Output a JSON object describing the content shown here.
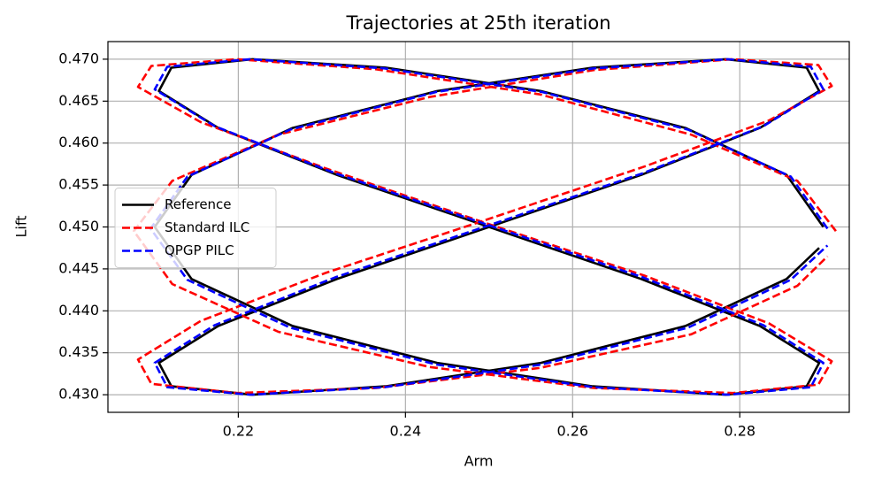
{
  "chart_data": {
    "type": "line",
    "title": "Trajectories at 25th iteration",
    "xlabel": "Arm",
    "ylabel": "Lift",
    "xlim": [
      0.2044,
      0.2931
    ],
    "ylim": [
      0.4279,
      0.4721
    ],
    "xticks": [
      0.22,
      0.24,
      0.26,
      0.28
    ],
    "yticks": [
      {
        "value": 0.43,
        "label": "0.430"
      },
      0.435,
      {
        "value": 0.44,
        "label": "0.440"
      },
      0.445,
      {
        "value": 0.45,
        "label": "0.450"
      },
      0.455,
      {
        "value": 0.46,
        "label": "0.460"
      },
      0.465,
      {
        "value": 0.47,
        "label": "0.470"
      }
    ],
    "grid": true,
    "legend": "center left",
    "series": [
      {
        "name": "Reference",
        "color": "#000000",
        "dashed": false,
        "x": [
          0.29,
          0.2856,
          0.2735,
          0.2562,
          0.2376,
          0.2217,
          0.212,
          0.2105,
          0.2176,
          0.2318,
          0.25,
          0.2682,
          0.2824,
          0.2895,
          0.288,
          0.2783,
          0.2624,
          0.2438,
          0.2265,
          0.2144,
          0.21,
          0.2144,
          0.2265,
          0.2438,
          0.2624,
          0.2783,
          0.288,
          0.2895,
          0.2824,
          0.2682,
          0.25,
          0.2318,
          0.2176,
          0.2105,
          0.212,
          0.2217,
          0.2376,
          0.2562,
          0.2735,
          0.2856,
          0.2895
        ],
        "values": [
          0.45,
          0.4562,
          0.4618,
          0.4662,
          0.469,
          0.47,
          0.469,
          0.4662,
          0.4618,
          0.4562,
          0.45,
          0.4438,
          0.4382,
          0.4338,
          0.431,
          0.43,
          0.431,
          0.4338,
          0.4382,
          0.4438,
          0.45,
          0.4562,
          0.4618,
          0.4662,
          0.469,
          0.47,
          0.469,
          0.4662,
          0.4618,
          0.4562,
          0.45,
          0.4438,
          0.4382,
          0.4338,
          0.431,
          0.43,
          0.431,
          0.4338,
          0.4382,
          0.4438,
          0.4475
        ]
      },
      {
        "name": "Standard ILC",
        "color": "#ff0000",
        "dashed": true,
        "x": [
          0.2915,
          0.2869,
          0.2742,
          0.2561,
          0.2365,
          0.2198,
          0.2096,
          0.208,
          0.2155,
          0.2304,
          0.2495,
          0.2686,
          0.2835,
          0.291,
          0.2894,
          0.2792,
          0.2625,
          0.2429,
          0.2248,
          0.2121,
          0.2075,
          0.2121,
          0.2248,
          0.2429,
          0.2625,
          0.2792,
          0.2894,
          0.291,
          0.2835,
          0.2686,
          0.2495,
          0.2304,
          0.2155,
          0.208,
          0.2096,
          0.2198,
          0.2365,
          0.2561,
          0.2742,
          0.2869,
          0.2905
        ],
        "values": [
          0.4495,
          0.4555,
          0.461,
          0.4658,
          0.4688,
          0.47,
          0.4692,
          0.4667,
          0.4625,
          0.457,
          0.4505,
          0.4442,
          0.4385,
          0.434,
          0.4312,
          0.4302,
          0.4308,
          0.4333,
          0.4375,
          0.4432,
          0.4495,
          0.4555,
          0.461,
          0.4655,
          0.4687,
          0.47,
          0.4693,
          0.4668,
          0.4627,
          0.4572,
          0.4508,
          0.4445,
          0.4388,
          0.4342,
          0.4313,
          0.4302,
          0.4308,
          0.4332,
          0.4372,
          0.443,
          0.4465
        ]
      },
      {
        "name": "QPGP PILC",
        "color": "#0000ff",
        "dashed": true,
        "x": [
          0.2905,
          0.2861,
          0.2738,
          0.2563,
          0.2375,
          0.2214,
          0.2115,
          0.21,
          0.2172,
          0.2316,
          0.25,
          0.2684,
          0.2828,
          0.29,
          0.2885,
          0.2786,
          0.2625,
          0.2437,
          0.2262,
          0.2139,
          0.2095,
          0.2139,
          0.2262,
          0.2437,
          0.2625,
          0.2786,
          0.2885,
          0.29,
          0.2828,
          0.2684,
          0.25,
          0.2316,
          0.2172,
          0.21,
          0.2115,
          0.2214,
          0.2375,
          0.2563,
          0.2738,
          0.2861,
          0.2905
        ],
        "values": [
          0.4498,
          0.456,
          0.4616,
          0.4661,
          0.4689,
          0.47,
          0.4691,
          0.4664,
          0.462,
          0.4564,
          0.4502,
          0.444,
          0.4383,
          0.4338,
          0.4309,
          0.43,
          0.4309,
          0.4336,
          0.438,
          0.4437,
          0.4498,
          0.456,
          0.4616,
          0.4661,
          0.4689,
          0.47,
          0.4691,
          0.4664,
          0.462,
          0.4564,
          0.4502,
          0.444,
          0.4383,
          0.4338,
          0.4309,
          0.43,
          0.4309,
          0.4336,
          0.438,
          0.4437,
          0.4478
        ]
      }
    ]
  }
}
